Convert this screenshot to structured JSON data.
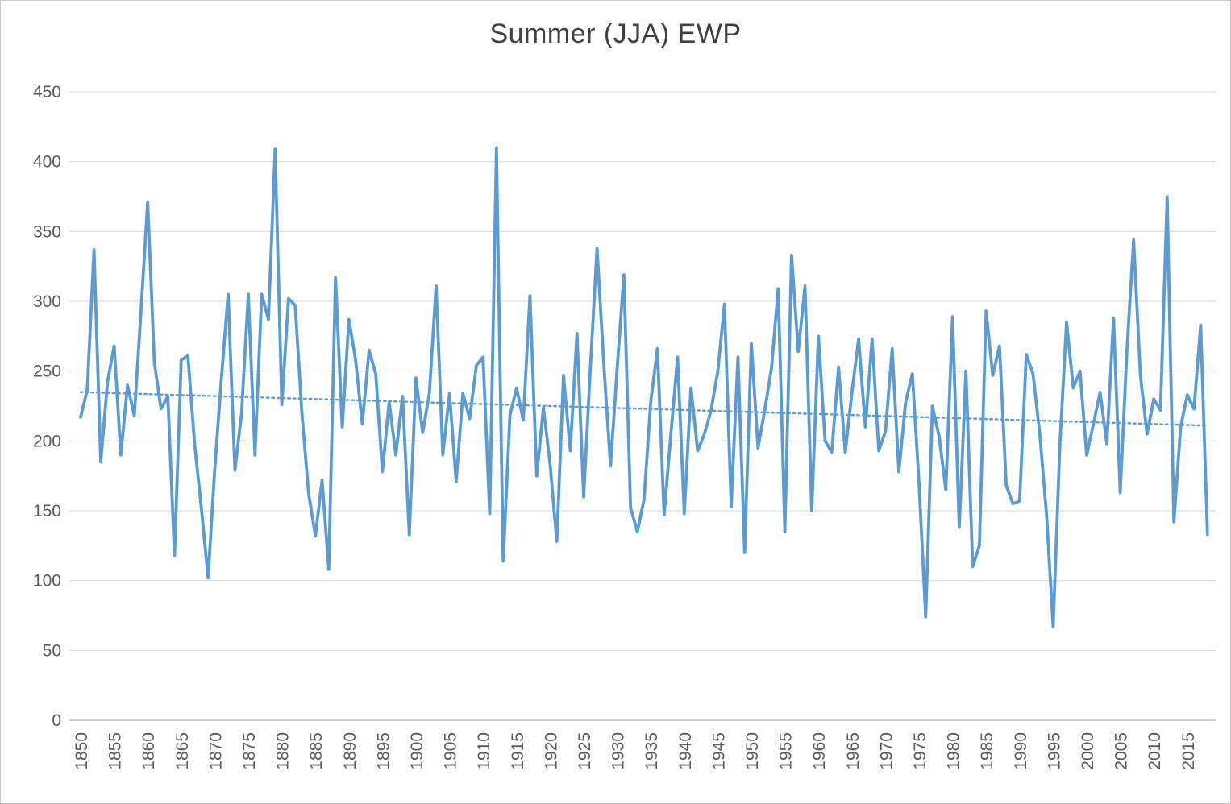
{
  "page": {
    "background_color": "#ffffff",
    "border_color": "#c8c8c8"
  },
  "chart_data": {
    "type": "line",
    "title": "Summer (JJA) EWP",
    "legend": "none",
    "grid": {
      "horizontal": true,
      "vertical": false,
      "color": "#d9d9d9"
    },
    "axis_line_color": "#bfbfbf",
    "y_axis": {
      "min": 0,
      "max": 450,
      "step": 50,
      "tick_labels": [
        "0",
        "50",
        "100",
        "150",
        "200",
        "250",
        "300",
        "350",
        "400",
        "450"
      ],
      "label_color": "#595959"
    },
    "x_axis": {
      "tick_start": 1850,
      "tick_end": 2015,
      "tick_step": 5,
      "tick_labels": [
        "1850",
        "1855",
        "1860",
        "1865",
        "1870",
        "1875",
        "1880",
        "1885",
        "1890",
        "1895",
        "1900",
        "1905",
        "1910",
        "1915",
        "1920",
        "1925",
        "1930",
        "1935",
        "1940",
        "1945",
        "1950",
        "1955",
        "1960",
        "1965",
        "1970",
        "1975",
        "1980",
        "1985",
        "1990",
        "1995",
        "2000",
        "2005",
        "2010",
        "2015"
      ],
      "label_rotation": -90,
      "label_color": "#595959"
    },
    "series": [
      {
        "name": "Summer (JJA) EWP",
        "color": "#5b9bd5",
        "start_year": 1850,
        "end_year": 2018,
        "values": [
          217,
          237,
          337,
          185,
          242,
          268,
          190,
          240,
          218,
          293,
          371,
          256,
          223,
          232,
          118,
          258,
          261,
          198,
          152,
          102,
          180,
          245,
          305,
          179,
          220,
          305,
          190,
          305,
          287,
          409,
          226,
          302,
          297,
          219,
          162,
          132,
          172,
          108,
          317,
          210,
          287,
          258,
          212,
          265,
          248,
          178,
          228,
          190,
          232,
          133,
          245,
          206,
          234,
          311,
          190,
          234,
          171,
          234,
          216,
          254,
          260,
          148,
          410,
          114,
          218,
          238,
          215,
          304,
          175,
          224,
          183,
          128,
          247,
          193,
          277,
          160,
          252,
          338,
          255,
          182,
          252,
          319,
          152,
          135,
          158,
          228,
          266,
          147,
          205,
          260,
          148,
          238,
          193,
          205,
          222,
          250,
          298,
          153,
          260,
          120,
          270,
          195,
          222,
          252,
          309,
          135,
          333,
          264,
          311,
          150,
          275,
          200,
          192,
          253,
          192,
          235,
          273,
          210,
          273,
          193,
          207,
          266,
          178,
          228,
          248,
          170,
          74,
          225,
          203,
          165,
          289,
          138,
          250,
          110,
          125,
          293,
          247,
          268,
          168,
          155,
          157,
          262,
          248,
          205,
          148,
          67,
          197,
          285,
          238,
          250,
          190,
          212,
          235,
          198,
          288,
          163,
          265,
          344,
          247,
          205,
          230,
          222,
          375,
          142,
          210,
          233,
          223,
          283,
          133
        ]
      }
    ],
    "trendline": {
      "style": "dotted",
      "color": "#5b9bd5",
      "start": {
        "year": 1850,
        "value": 235
      },
      "end": {
        "year": 2018,
        "value": 211
      }
    }
  }
}
